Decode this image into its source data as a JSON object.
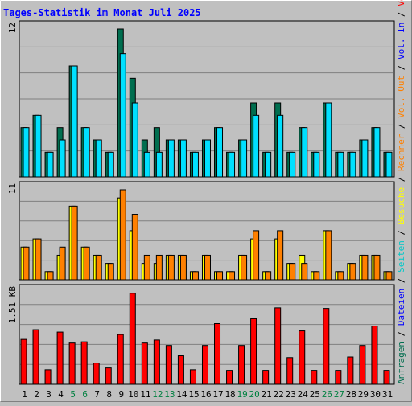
{
  "chart_data": {
    "title": "Tages-Statistik im Monat Juli 2025",
    "type": "bar",
    "categories": [
      "1",
      "2",
      "3",
      "4",
      "5",
      "6",
      "7",
      "8",
      "9",
      "10",
      "11",
      "12",
      "13",
      "14",
      "15",
      "16",
      "17",
      "18",
      "19",
      "20",
      "21",
      "22",
      "23",
      "24",
      "25",
      "26",
      "27",
      "28",
      "29",
      "30",
      "31"
    ],
    "weekend_days": [
      "5",
      "6",
      "12",
      "13",
      "19",
      "20",
      "26",
      "27"
    ],
    "panels": [
      {
        "id": "requests",
        "scale_label": "12",
        "ymax": 12,
        "series": [
          {
            "name": "Anfragen",
            "color": "#006e4f",
            "values": [
              4,
              5,
              2,
              4,
              9,
              4,
              3,
              2,
              12,
              8,
              3,
              4,
              3,
              3,
              2,
              3,
              4,
              2,
              3,
              6,
              2,
              6,
              2,
              4,
              2,
              6,
              2,
              2,
              3,
              4,
              2
            ]
          },
          {
            "name": "Dateien",
            "color": "#00e0ff",
            "values": [
              4,
              5,
              2,
              3,
              9,
              4,
              3,
              2,
              10,
              6,
              2,
              2,
              3,
              3,
              2,
              3,
              4,
              2,
              3,
              5,
              2,
              5,
              2,
              4,
              2,
              6,
              2,
              2,
              3,
              4,
              2
            ]
          },
          {
            "name": "Seiten",
            "color": "#00c8c8",
            "values": []
          }
        ]
      },
      {
        "id": "visits",
        "scale_label": "11",
        "ymax": 11,
        "series": [
          {
            "name": "Besuche",
            "color": "#ffff00",
            "values": [
              4,
              5,
              1,
              3,
              9,
              4,
              3,
              2,
              10,
              6,
              2,
              2,
              3,
              3,
              1,
              3,
              1,
              1,
              3,
              5,
              1,
              5,
              2,
              3,
              1,
              6,
              1,
              2,
              3,
              3,
              1
            ]
          },
          {
            "name": "Rechner",
            "color": "#ff8000",
            "values": [
              4,
              5,
              1,
              4,
              9,
              4,
              3,
              2,
              11,
              8,
              3,
              3,
              3,
              3,
              1,
              3,
              1,
              1,
              3,
              6,
              1,
              6,
              2,
              2,
              1,
              6,
              1,
              2,
              3,
              3,
              1
            ]
          }
        ]
      },
      {
        "id": "volume",
        "scale_label": "1.51 KB",
        "ymax": 1.51,
        "series": [
          {
            "name": "Volumen",
            "color": "#ff0000",
            "values": [
              0.74,
              0.9,
              0.24,
              0.86,
              0.68,
              0.7,
              0.35,
              0.27,
              0.82,
              1.5,
              0.68,
              0.73,
              0.64,
              0.47,
              0.24,
              0.64,
              1.0,
              0.23,
              0.64,
              1.08,
              0.23,
              1.26,
              0.44,
              0.88,
              0.23,
              1.25,
              0.23,
              0.45,
              0.64,
              0.96,
              0.23
            ]
          }
        ]
      }
    ],
    "legend_right": [
      {
        "text": "Anfragen",
        "color": "#006e4f"
      },
      {
        "text": " / ",
        "color": "#000000"
      },
      {
        "text": "Dateien",
        "color": "#0000ff"
      },
      {
        "text": " / ",
        "color": "#000000"
      },
      {
        "text": "Seiten",
        "color": "#00c8c8"
      },
      {
        "text": " / ",
        "color": "#000000"
      },
      {
        "text": "Besuche",
        "color": "#ffff00"
      },
      {
        "text": " / ",
        "color": "#000000"
      },
      {
        "text": "Rechner",
        "color": "#ff8000"
      },
      {
        "text": " / ",
        "color": "#000000"
      },
      {
        "text": "Vol. Out",
        "color": "#ff8000"
      },
      {
        "text": " / ",
        "color": "#000000"
      },
      {
        "text": "Vol. In",
        "color": "#0000ff"
      },
      {
        "text": " / ",
        "color": "#000000"
      },
      {
        "text": "Volumen",
        "color": "#ff0000"
      }
    ],
    "colors": {
      "background": "#c0c0c0",
      "title": "#0000ff",
      "axis_label": "#000000",
      "weekend_label": "#008040",
      "gridline": "#808080"
    }
  }
}
